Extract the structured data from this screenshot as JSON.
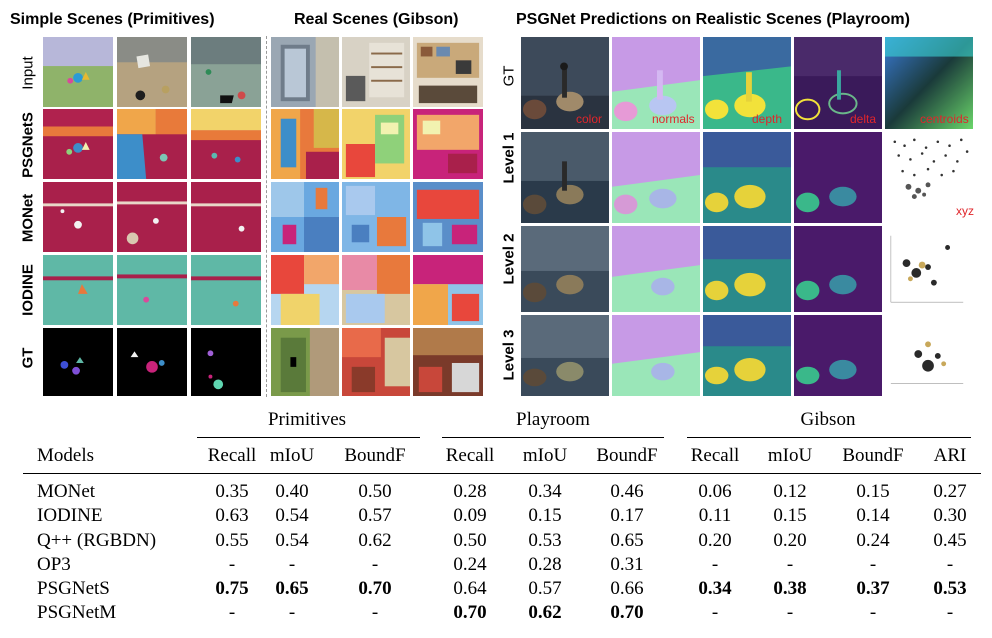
{
  "figure": {
    "sections": [
      {
        "id": "simple",
        "title": "Simple Scenes (Primitives)"
      },
      {
        "id": "real",
        "title": "Real Scenes (Gibson)"
      },
      {
        "id": "psgnet",
        "title": "PSGNet Predictions on Realistic Scenes (Playroom)"
      }
    ],
    "left_row_labels": [
      "Input",
      "PSGNetS",
      "MONet",
      "IODINE",
      "GT"
    ],
    "right_row_labels": [
      "GT",
      "Level 1",
      "Level 2",
      "Level 3"
    ],
    "right_captions": [
      "color",
      "normals",
      "depth",
      "delta",
      "centroids",
      "xyz"
    ]
  },
  "table": {
    "groups": [
      "Primitives",
      "Playroom",
      "Gibson"
    ],
    "columns": [
      "Models",
      "Recall",
      "mIoU",
      "BoundF",
      "Recall",
      "mIoU",
      "BoundF",
      "Recall",
      "mIoU",
      "BoundF",
      "ARI"
    ],
    "rows": [
      {
        "model": "MONet",
        "values": [
          "0.35",
          "0.40",
          "0.50",
          "0.28",
          "0.34",
          "0.46",
          "0.06",
          "0.12",
          "0.15",
          "0.27"
        ],
        "bold": []
      },
      {
        "model": "IODINE",
        "values": [
          "0.63",
          "0.54",
          "0.57",
          "0.09",
          "0.15",
          "0.17",
          "0.11",
          "0.15",
          "0.14",
          "0.30"
        ],
        "bold": []
      },
      {
        "model": "Q++ (RGBDN)",
        "values": [
          "0.55",
          "0.54",
          "0.62",
          "0.50",
          "0.53",
          "0.65",
          "0.20",
          "0.20",
          "0.24",
          "0.45"
        ],
        "bold": []
      },
      {
        "model": "OP3",
        "values": [
          "-",
          "-",
          "-",
          "0.24",
          "0.28",
          "0.31",
          "-",
          "-",
          "-",
          "-"
        ],
        "bold": []
      },
      {
        "model": "PSGNetS",
        "values": [
          "0.75",
          "0.65",
          "0.70",
          "0.64",
          "0.57",
          "0.66",
          "0.34",
          "0.38",
          "0.37",
          "0.53"
        ],
        "bold": [
          0,
          1,
          2,
          6,
          7,
          8,
          9
        ]
      },
      {
        "model": "PSGNetM",
        "values": [
          "-",
          "-",
          "-",
          "0.70",
          "0.62",
          "0.70",
          "-",
          "-",
          "-",
          "-"
        ],
        "bold": [
          3,
          4,
          5
        ]
      }
    ]
  }
}
